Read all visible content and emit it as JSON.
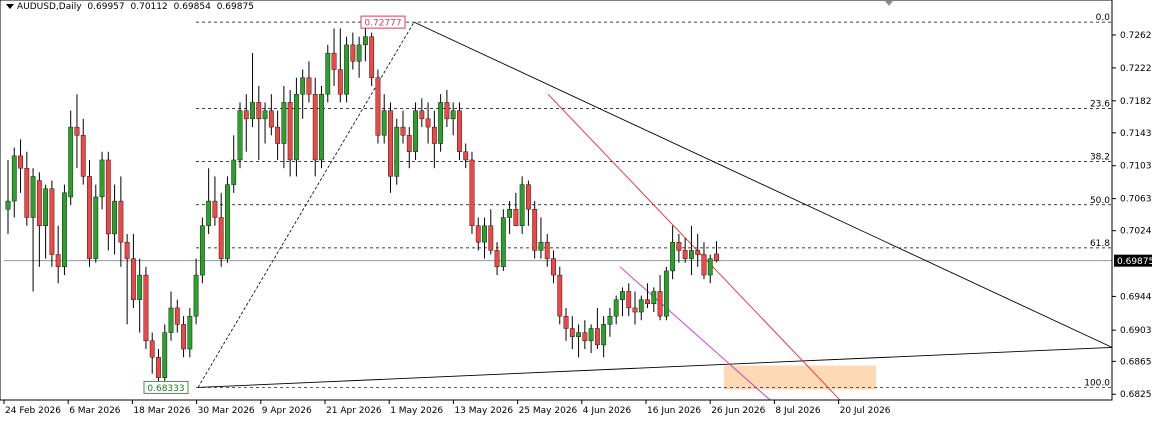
{
  "header": {
    "symbol": "AUDUSD,Daily",
    "open": "0.69957",
    "high": "0.70112",
    "low": "0.69854",
    "close": "0.69875"
  },
  "colors": {
    "bull": "#2ca02c",
    "bear": "#f04646",
    "wick": "#000000",
    "fib_band": "#fdd9b5",
    "magenta": "#cc33cc",
    "red_line": "#e03030",
    "current_label_bg": "#000000"
  },
  "chart_data": {
    "type": "candlestick",
    "symbol": "AUDUSD",
    "timeframe": "Daily",
    "ylim": [
      0.6818,
      0.729
    ],
    "y_ticks": [
      "0.72620",
      "0.72220",
      "0.71820",
      "0.71430",
      "0.71030",
      "0.70630",
      "0.70240",
      "0.69875",
      "0.69440",
      "0.69030",
      "0.68650",
      "0.68250"
    ],
    "x_ticks": [
      "24 Feb 2026",
      "6 Mar 2026",
      "18 Mar 2026",
      "30 Mar 2026",
      "9 Apr 2026",
      "21 Apr 2026",
      "1 May 2026",
      "13 May 2026",
      "25 May 2026",
      "4 Jun 2026",
      "16 Jun 2026",
      "26 Jun 2026",
      "8 Jul 2026",
      "20 Jul 2026"
    ],
    "current_price": "0.69875",
    "annotations": {
      "high_label": "0.72777",
      "low_label": "0.68333"
    },
    "fib_levels": [
      {
        "label": "0.0",
        "price": 0.72777
      },
      {
        "label": "23.6",
        "price": 0.71728
      },
      {
        "label": "38.2",
        "price": 0.7108
      },
      {
        "label": "50.0",
        "price": 0.70555
      },
      {
        "label": "61.8",
        "price": 0.70031
      },
      {
        "label": "100.0",
        "price": 0.68333
      }
    ],
    "candles": [
      {
        "o": 0.705,
        "h": 0.711,
        "l": 0.702,
        "c": 0.706
      },
      {
        "o": 0.706,
        "h": 0.7125,
        "l": 0.704,
        "c": 0.7115
      },
      {
        "o": 0.7115,
        "h": 0.7135,
        "l": 0.707,
        "c": 0.71
      },
      {
        "o": 0.71,
        "h": 0.712,
        "l": 0.703,
        "c": 0.704
      },
      {
        "o": 0.704,
        "h": 0.71,
        "l": 0.695,
        "c": 0.709
      },
      {
        "o": 0.7085,
        "h": 0.7095,
        "l": 0.698,
        "c": 0.703
      },
      {
        "o": 0.703,
        "h": 0.708,
        "l": 0.699,
        "c": 0.7075
      },
      {
        "o": 0.7075,
        "h": 0.7085,
        "l": 0.698,
        "c": 0.6995
      },
      {
        "o": 0.6995,
        "h": 0.703,
        "l": 0.696,
        "c": 0.698
      },
      {
        "o": 0.698,
        "h": 0.708,
        "l": 0.697,
        "c": 0.707
      },
      {
        "o": 0.7065,
        "h": 0.717,
        "l": 0.7055,
        "c": 0.715
      },
      {
        "o": 0.715,
        "h": 0.719,
        "l": 0.71,
        "c": 0.714
      },
      {
        "o": 0.714,
        "h": 0.716,
        "l": 0.708,
        "c": 0.709
      },
      {
        "o": 0.709,
        "h": 0.711,
        "l": 0.698,
        "c": 0.699
      },
      {
        "o": 0.699,
        "h": 0.708,
        "l": 0.6985,
        "c": 0.7065
      },
      {
        "o": 0.7065,
        "h": 0.712,
        "l": 0.705,
        "c": 0.711
      },
      {
        "o": 0.711,
        "h": 0.712,
        "l": 0.7,
        "c": 0.702
      },
      {
        "o": 0.702,
        "h": 0.708,
        "l": 0.6995,
        "c": 0.706
      },
      {
        "o": 0.706,
        "h": 0.709,
        "l": 0.698,
        "c": 0.701
      },
      {
        "o": 0.701,
        "h": 0.702,
        "l": 0.691,
        "c": 0.699
      },
      {
        "o": 0.699,
        "h": 0.702,
        "l": 0.693,
        "c": 0.694
      },
      {
        "o": 0.694,
        "h": 0.699,
        "l": 0.69,
        "c": 0.697
      },
      {
        "o": 0.697,
        "h": 0.698,
        "l": 0.688,
        "c": 0.689
      },
      {
        "o": 0.689,
        "h": 0.69,
        "l": 0.685,
        "c": 0.687
      },
      {
        "o": 0.687,
        "h": 0.688,
        "l": 0.6833,
        "c": 0.6845
      },
      {
        "o": 0.6845,
        "h": 0.691,
        "l": 0.6838,
        "c": 0.69
      },
      {
        "o": 0.69,
        "h": 0.695,
        "l": 0.689,
        "c": 0.693
      },
      {
        "o": 0.693,
        "h": 0.694,
        "l": 0.69,
        "c": 0.691
      },
      {
        "o": 0.691,
        "h": 0.692,
        "l": 0.687,
        "c": 0.688
      },
      {
        "o": 0.688,
        "h": 0.693,
        "l": 0.687,
        "c": 0.692
      },
      {
        "o": 0.692,
        "h": 0.699,
        "l": 0.691,
        "c": 0.697
      },
      {
        "o": 0.697,
        "h": 0.704,
        "l": 0.696,
        "c": 0.703
      },
      {
        "o": 0.703,
        "h": 0.71,
        "l": 0.702,
        "c": 0.706
      },
      {
        "o": 0.706,
        "h": 0.709,
        "l": 0.703,
        "c": 0.704
      },
      {
        "o": 0.704,
        "h": 0.707,
        "l": 0.698,
        "c": 0.699
      },
      {
        "o": 0.699,
        "h": 0.709,
        "l": 0.6985,
        "c": 0.708
      },
      {
        "o": 0.708,
        "h": 0.714,
        "l": 0.707,
        "c": 0.711
      },
      {
        "o": 0.711,
        "h": 0.718,
        "l": 0.71,
        "c": 0.717
      },
      {
        "o": 0.717,
        "h": 0.719,
        "l": 0.712,
        "c": 0.716
      },
      {
        "o": 0.716,
        "h": 0.724,
        "l": 0.715,
        "c": 0.718
      },
      {
        "o": 0.718,
        "h": 0.72,
        "l": 0.711,
        "c": 0.716
      },
      {
        "o": 0.716,
        "h": 0.718,
        "l": 0.713,
        "c": 0.717
      },
      {
        "o": 0.717,
        "h": 0.719,
        "l": 0.714,
        "c": 0.715
      },
      {
        "o": 0.715,
        "h": 0.717,
        "l": 0.711,
        "c": 0.713
      },
      {
        "o": 0.713,
        "h": 0.72,
        "l": 0.71,
        "c": 0.718
      },
      {
        "o": 0.718,
        "h": 0.7195,
        "l": 0.709,
        "c": 0.711
      },
      {
        "o": 0.711,
        "h": 0.721,
        "l": 0.709,
        "c": 0.719
      },
      {
        "o": 0.719,
        "h": 0.722,
        "l": 0.716,
        "c": 0.721
      },
      {
        "o": 0.721,
        "h": 0.723,
        "l": 0.718,
        "c": 0.719
      },
      {
        "o": 0.719,
        "h": 0.721,
        "l": 0.709,
        "c": 0.711
      },
      {
        "o": 0.711,
        "h": 0.72,
        "l": 0.71,
        "c": 0.719
      },
      {
        "o": 0.719,
        "h": 0.725,
        "l": 0.718,
        "c": 0.724
      },
      {
        "o": 0.724,
        "h": 0.727,
        "l": 0.72,
        "c": 0.722
      },
      {
        "o": 0.722,
        "h": 0.727,
        "l": 0.718,
        "c": 0.719
      },
      {
        "o": 0.719,
        "h": 0.726,
        "l": 0.718,
        "c": 0.725
      },
      {
        "o": 0.725,
        "h": 0.7265,
        "l": 0.722,
        "c": 0.723
      },
      {
        "o": 0.723,
        "h": 0.726,
        "l": 0.721,
        "c": 0.725
      },
      {
        "o": 0.725,
        "h": 0.727,
        "l": 0.723,
        "c": 0.726
      },
      {
        "o": 0.726,
        "h": 0.7265,
        "l": 0.72,
        "c": 0.721
      },
      {
        "o": 0.721,
        "h": 0.722,
        "l": 0.713,
        "c": 0.714
      },
      {
        "o": 0.714,
        "h": 0.719,
        "l": 0.713,
        "c": 0.717
      },
      {
        "o": 0.717,
        "h": 0.718,
        "l": 0.707,
        "c": 0.709
      },
      {
        "o": 0.709,
        "h": 0.716,
        "l": 0.708,
        "c": 0.715
      },
      {
        "o": 0.715,
        "h": 0.717,
        "l": 0.713,
        "c": 0.714
      },
      {
        "o": 0.714,
        "h": 0.715,
        "l": 0.71,
        "c": 0.712
      },
      {
        "o": 0.712,
        "h": 0.718,
        "l": 0.711,
        "c": 0.717
      },
      {
        "o": 0.717,
        "h": 0.7185,
        "l": 0.715,
        "c": 0.716
      },
      {
        "o": 0.716,
        "h": 0.718,
        "l": 0.713,
        "c": 0.715
      },
      {
        "o": 0.715,
        "h": 0.717,
        "l": 0.71,
        "c": 0.713
      },
      {
        "o": 0.713,
        "h": 0.719,
        "l": 0.712,
        "c": 0.718
      },
      {
        "o": 0.718,
        "h": 0.7195,
        "l": 0.715,
        "c": 0.716
      },
      {
        "o": 0.716,
        "h": 0.718,
        "l": 0.714,
        "c": 0.717
      },
      {
        "o": 0.717,
        "h": 0.718,
        "l": 0.711,
        "c": 0.712
      },
      {
        "o": 0.712,
        "h": 0.713,
        "l": 0.71,
        "c": 0.711
      },
      {
        "o": 0.711,
        "h": 0.712,
        "l": 0.702,
        "c": 0.703
      },
      {
        "o": 0.703,
        "h": 0.704,
        "l": 0.7,
        "c": 0.701
      },
      {
        "o": 0.701,
        "h": 0.704,
        "l": 0.699,
        "c": 0.703
      },
      {
        "o": 0.703,
        "h": 0.705,
        "l": 0.6995,
        "c": 0.7
      },
      {
        "o": 0.7,
        "h": 0.701,
        "l": 0.697,
        "c": 0.698
      },
      {
        "o": 0.698,
        "h": 0.705,
        "l": 0.6975,
        "c": 0.704
      },
      {
        "o": 0.704,
        "h": 0.706,
        "l": 0.702,
        "c": 0.705
      },
      {
        "o": 0.705,
        "h": 0.707,
        "l": 0.703,
        "c": 0.703
      },
      {
        "o": 0.703,
        "h": 0.709,
        "l": 0.702,
        "c": 0.708
      },
      {
        "o": 0.708,
        "h": 0.7085,
        "l": 0.703,
        "c": 0.705
      },
      {
        "o": 0.705,
        "h": 0.706,
        "l": 0.699,
        "c": 0.7
      },
      {
        "o": 0.7,
        "h": 0.704,
        "l": 0.699,
        "c": 0.701
      },
      {
        "o": 0.701,
        "h": 0.702,
        "l": 0.698,
        "c": 0.699
      },
      {
        "o": 0.699,
        "h": 0.7,
        "l": 0.696,
        "c": 0.697
      },
      {
        "o": 0.697,
        "h": 0.698,
        "l": 0.691,
        "c": 0.692
      },
      {
        "o": 0.692,
        "h": 0.693,
        "l": 0.689,
        "c": 0.6905
      },
      {
        "o": 0.6905,
        "h": 0.692,
        "l": 0.688,
        "c": 0.6895
      },
      {
        "o": 0.6895,
        "h": 0.691,
        "l": 0.687,
        "c": 0.69
      },
      {
        "o": 0.69,
        "h": 0.6915,
        "l": 0.688,
        "c": 0.689
      },
      {
        "o": 0.689,
        "h": 0.691,
        "l": 0.6875,
        "c": 0.6905
      },
      {
        "o": 0.6905,
        "h": 0.693,
        "l": 0.688,
        "c": 0.6885
      },
      {
        "o": 0.6885,
        "h": 0.692,
        "l": 0.687,
        "c": 0.691
      },
      {
        "o": 0.691,
        "h": 0.693,
        "l": 0.6895,
        "c": 0.692
      },
      {
        "o": 0.692,
        "h": 0.6945,
        "l": 0.691,
        "c": 0.694
      },
      {
        "o": 0.694,
        "h": 0.6955,
        "l": 0.692,
        "c": 0.695
      },
      {
        "o": 0.695,
        "h": 0.696,
        "l": 0.692,
        "c": 0.693
      },
      {
        "o": 0.693,
        "h": 0.695,
        "l": 0.691,
        "c": 0.6925
      },
      {
        "o": 0.6925,
        "h": 0.6945,
        "l": 0.6915,
        "c": 0.694
      },
      {
        "o": 0.694,
        "h": 0.696,
        "l": 0.693,
        "c": 0.6935
      },
      {
        "o": 0.6935,
        "h": 0.6955,
        "l": 0.6925,
        "c": 0.695
      },
      {
        "o": 0.695,
        "h": 0.697,
        "l": 0.6915,
        "c": 0.692
      },
      {
        "o": 0.692,
        "h": 0.698,
        "l": 0.6915,
        "c": 0.6975
      },
      {
        "o": 0.6975,
        "h": 0.703,
        "l": 0.6965,
        "c": 0.701
      },
      {
        "o": 0.701,
        "h": 0.702,
        "l": 0.6985,
        "c": 0.7
      },
      {
        "o": 0.7,
        "h": 0.7015,
        "l": 0.6985,
        "c": 0.699
      },
      {
        "o": 0.699,
        "h": 0.703,
        "l": 0.697,
        "c": 0.7
      },
      {
        "o": 0.7,
        "h": 0.702,
        "l": 0.698,
        "c": 0.6995
      },
      {
        "o": 0.6995,
        "h": 0.701,
        "l": 0.6965,
        "c": 0.697
      },
      {
        "o": 0.697,
        "h": 0.6995,
        "l": 0.696,
        "c": 0.699
      },
      {
        "o": 0.69957,
        "h": 0.70112,
        "l": 0.69854,
        "c": 0.69875
      }
    ]
  }
}
